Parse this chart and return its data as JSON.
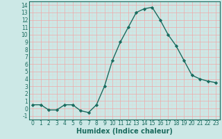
{
  "x": [
    0,
    1,
    2,
    3,
    4,
    5,
    6,
    7,
    8,
    9,
    10,
    11,
    12,
    13,
    14,
    15,
    16,
    17,
    18,
    19,
    20,
    21,
    22,
    23
  ],
  "y": [
    0.5,
    0.5,
    -0.2,
    -0.2,
    0.5,
    0.5,
    -0.3,
    -0.55,
    0.5,
    3.0,
    6.5,
    9.0,
    11.0,
    13.0,
    13.5,
    13.7,
    12.0,
    10.0,
    8.5,
    6.5,
    4.5,
    4.0,
    3.7,
    3.5
  ],
  "line_color": "#1a6b5e",
  "marker": "D",
  "markersize": 2.2,
  "linewidth": 1.0,
  "bg_color": "#cce8e6",
  "grid_major_color": "#f0a8a8",
  "grid_minor_color": "#e8d0d0",
  "xlabel": "Humidex (Indice chaleur)",
  "xlabel_fontsize": 7,
  "xlim": [
    -0.5,
    23.5
  ],
  "ylim": [
    -1.5,
    14.5
  ],
  "yticks": [
    -1,
    0,
    1,
    2,
    3,
    4,
    5,
    6,
    7,
    8,
    9,
    10,
    11,
    12,
    13,
    14
  ],
  "xticks": [
    0,
    1,
    2,
    3,
    4,
    5,
    6,
    7,
    8,
    9,
    10,
    11,
    12,
    13,
    14,
    15,
    16,
    17,
    18,
    19,
    20,
    21,
    22,
    23
  ],
  "tick_labelsize": 5.5,
  "spine_color": "#1a6b5e"
}
